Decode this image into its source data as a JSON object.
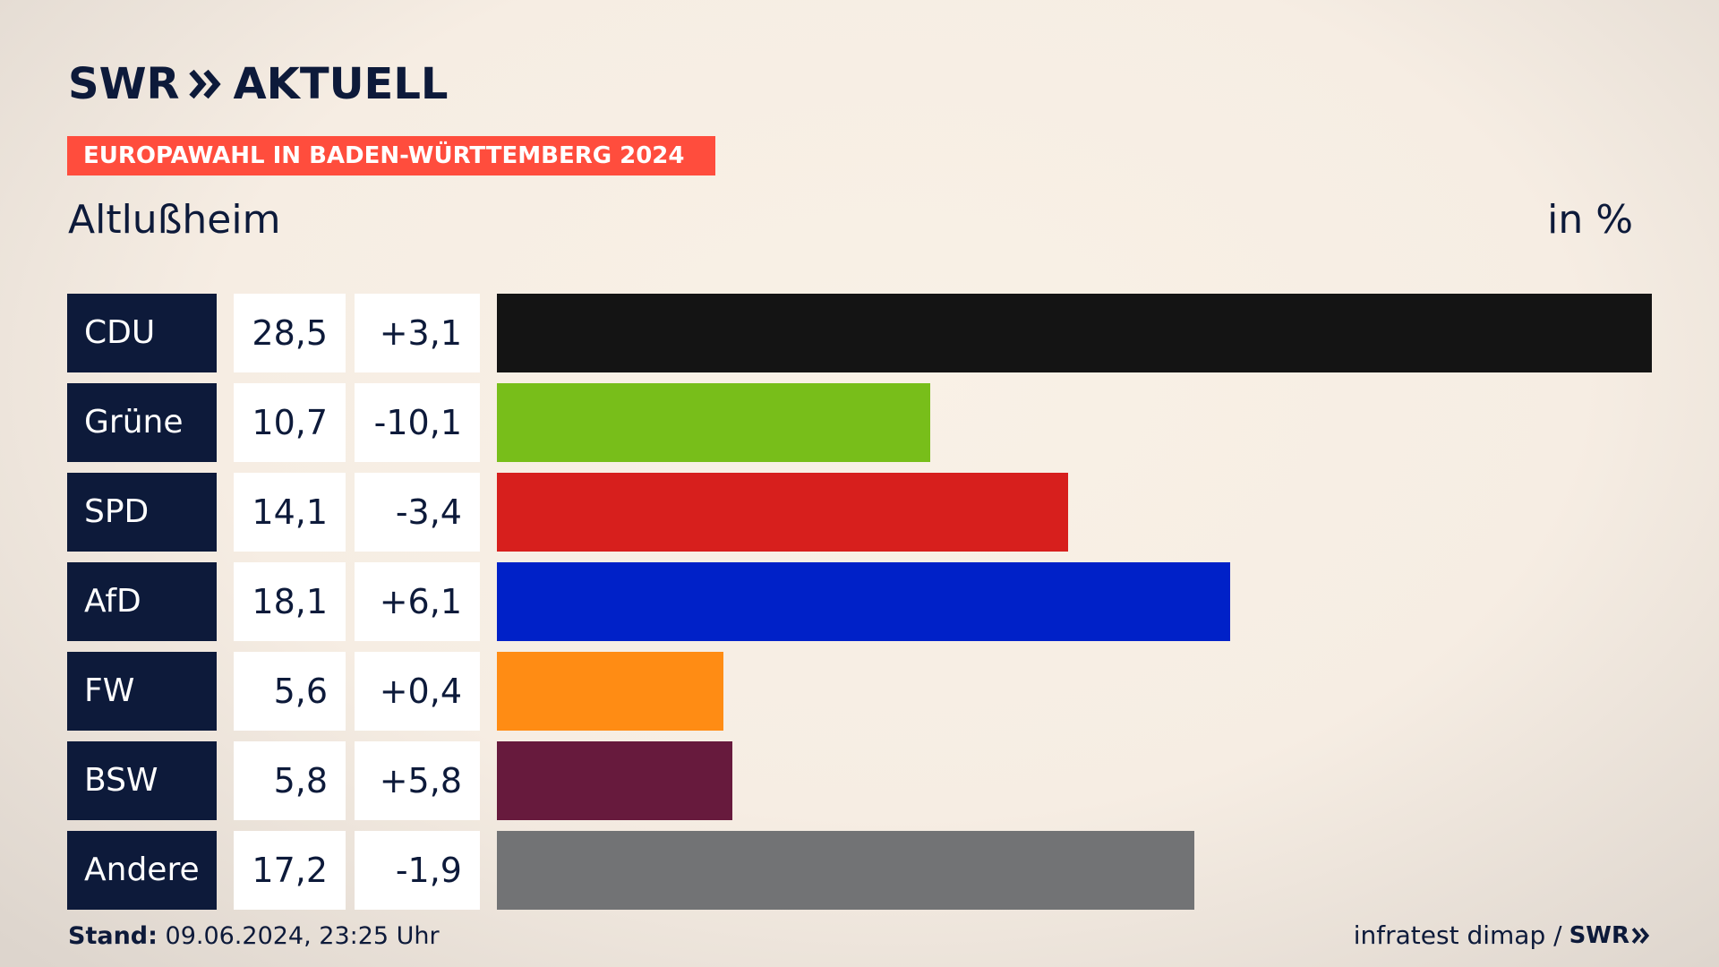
{
  "brand": {
    "logo_left": "SWR",
    "logo_right": "AKTUELL"
  },
  "banner": "EUROPAWAHL IN BADEN-WÜRTTEMBERG 2024",
  "region": "Altlußheim",
  "unit": "in %",
  "footer": {
    "stand_label": "Stand:",
    "stand_value": "09.06.2024, 23:25 Uhr",
    "source": "infratest dimap /",
    "source_brand": "SWR"
  },
  "chart_data": {
    "type": "bar",
    "orientation": "horizontal",
    "title": "EUROPAWAHL IN BADEN-WÜRTTEMBERG 2024",
    "subtitle": "Altlußheim",
    "unit": "in %",
    "categories": [
      "CDU",
      "Grüne",
      "SPD",
      "AfD",
      "FW",
      "BSW",
      "Andere"
    ],
    "values": [
      28.5,
      10.7,
      14.1,
      18.1,
      5.6,
      5.8,
      17.2
    ],
    "value_labels": [
      "28,5",
      "10,7",
      "14,1",
      "18,1",
      "5,6",
      "5,8",
      "17,2"
    ],
    "diff_labels": [
      "+3,1",
      "-10,1",
      "-3,4",
      "+6,1",
      "+0,4",
      "+5,8",
      "-1,9"
    ],
    "colors": [
      "#141414",
      "#78be1a",
      "#d71f1d",
      "#0021c8",
      "#ff8c14",
      "#671a3d",
      "#727375"
    ],
    "xlim": [
      0,
      28.5
    ]
  }
}
